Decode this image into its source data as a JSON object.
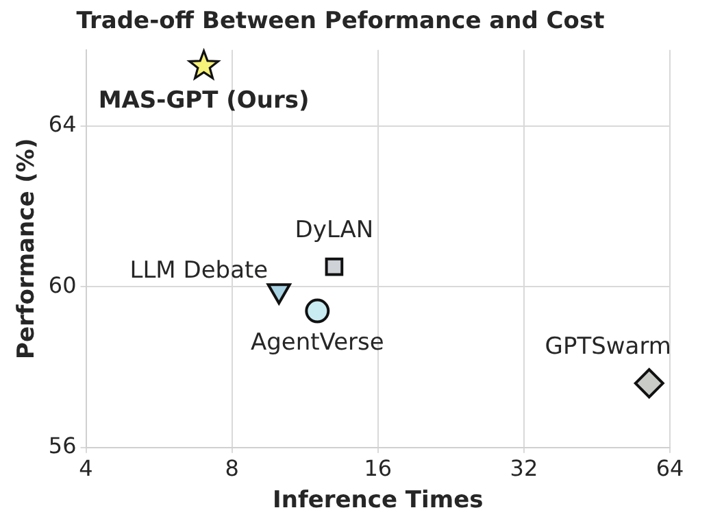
{
  "chart_data": {
    "type": "scatter",
    "title": "Trade-off Between Peformance and Cost",
    "xlabel": "Inference Times",
    "ylabel": "Performance (%)",
    "log": "x",
    "xlim": [
      4,
      64
    ],
    "xticks": [
      4,
      8,
      16,
      32,
      64
    ],
    "ylim": [
      56,
      65.9
    ],
    "yticks": [
      56,
      60,
      64
    ],
    "grid": true,
    "legend": false,
    "series": [
      {
        "name": "MAS-GPT (Ours)",
        "color": "#f7f27a",
        "marker": "star",
        "x": [
          7
        ],
        "values": [
          65.5
        ]
      },
      {
        "name": "DyLAN",
        "color": "#cfd3d8",
        "marker": "square",
        "x": [
          13
        ],
        "values": [
          60.5
        ]
      },
      {
        "name": "LLM Debate",
        "color": "#a9d3e3",
        "marker": "triangle-down",
        "x": [
          10
        ],
        "values": [
          59.9
        ]
      },
      {
        "name": "AgentVerse",
        "color": "#c9ecf2",
        "marker": "circle",
        "x": [
          12
        ],
        "values": [
          59.4
        ]
      },
      {
        "name": "GPTSwarm",
        "color": "#c8cbc6",
        "marker": "diamond",
        "x": [
          58
        ],
        "values": [
          57.6
        ]
      }
    ]
  }
}
